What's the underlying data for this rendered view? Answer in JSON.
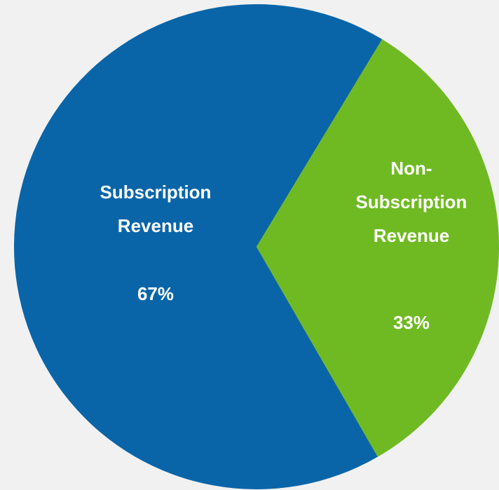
{
  "chart_data": {
    "type": "pie",
    "categories": [
      "Subscription Revenue",
      "Non-Subscription Revenue"
    ],
    "values": [
      67,
      33
    ],
    "value_labels": [
      "67%",
      "33%"
    ],
    "colors": [
      "#0a65a8",
      "#6fba22"
    ]
  }
}
